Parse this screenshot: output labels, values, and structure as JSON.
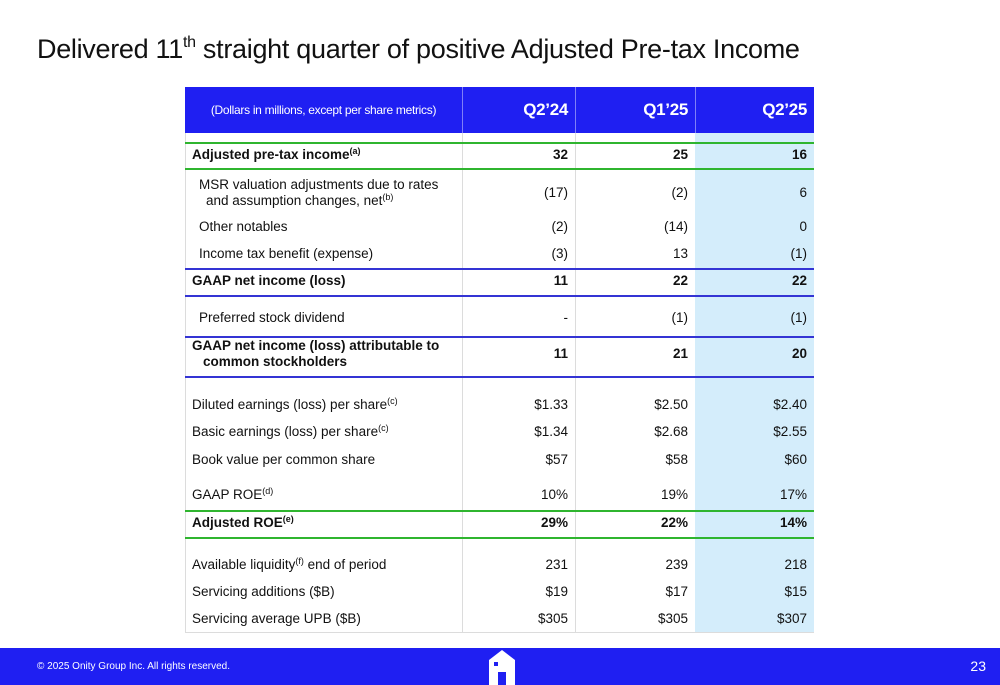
{
  "header": {
    "title": [
      "Delivered 11",
      "th",
      " straight quarter of positive Adjusted Pre-tax Income"
    ]
  },
  "table": {
    "column_headers": [
      "(Dollars in millions, except per share metrics)",
      "Q2’24",
      "Q1’25",
      "Q2’25"
    ],
    "rows": [
      {
        "label": [
          [
            "Adjusted pre-tax income",
            {
              "sup": "(a)"
            }
          ]
        ],
        "cells": [
          "32",
          "25",
          "16"
        ],
        "bold": true
      },
      {
        "label": [
          [
            "MSR valuation adjustments due to rates"
          ],
          [
            "and assumption changes, net",
            {
              "sup": "(b)"
            }
          ]
        ],
        "cells": [
          "(17)",
          "(2)",
          "6"
        ],
        "bold": false
      },
      {
        "label": [
          [
            "Other notables"
          ]
        ],
        "cells": [
          "(2)",
          "(14)",
          "0"
        ],
        "bold": false
      },
      {
        "label": [
          [
            "Income tax benefit (expense)"
          ]
        ],
        "cells": [
          "(3)",
          "13",
          "(1)"
        ],
        "bold": false
      },
      {
        "label": [
          [
            "GAAP net income (loss)"
          ]
        ],
        "cells": [
          "11",
          "22",
          "22"
        ],
        "bold": true
      },
      {
        "label": [
          [
            "Preferred stock dividend"
          ]
        ],
        "cells": [
          "-",
          "(1)",
          "(1)"
        ],
        "bold": false
      },
      {
        "label": [
          [
            "GAAP net income (loss) attributable to"
          ],
          [
            "common stockholders"
          ]
        ],
        "cells": [
          "11",
          "21",
          "20"
        ],
        "bold": true
      },
      {
        "label": [
          [
            "Diluted earnings (loss) per share",
            {
              "sup": "(c)"
            }
          ]
        ],
        "cells": [
          "$1.33",
          "$2.50",
          "$2.40"
        ],
        "bold": false
      },
      {
        "label": [
          [
            "Basic earnings (loss) per share",
            {
              "sup": "(c)"
            }
          ]
        ],
        "cells": [
          "$1.34",
          "$2.68",
          "$2.55"
        ],
        "bold": false
      },
      {
        "label": [
          [
            "Book value per common share"
          ]
        ],
        "cells": [
          "$57",
          "$58",
          "$60"
        ],
        "bold": false
      },
      {
        "label": [
          [
            "GAAP ROE",
            {
              "sup": "(d)"
            }
          ]
        ],
        "cells": [
          "10%",
          "19%",
          "17%"
        ],
        "bold": false
      },
      {
        "label": [
          [
            "Adjusted ROE",
            {
              "sup": "(e)"
            }
          ]
        ],
        "cells": [
          "29%",
          "22%",
          "14%"
        ],
        "bold": true
      },
      {
        "label": [
          [
            "Available liquidity",
            {
              "sup": "(f)"
            },
            " end of period"
          ]
        ],
        "cells": [
          "231",
          "239",
          "218"
        ],
        "bold": false
      },
      {
        "label": [
          [
            "Servicing additions ($B)"
          ]
        ],
        "cells": [
          "$19",
          "$17",
          "$15"
        ],
        "bold": false
      },
      {
        "label": [
          [
            "Servicing average UPB ($B)"
          ]
        ],
        "cells": [
          "$305",
          "$305",
          "$307"
        ],
        "bold": false
      }
    ]
  },
  "footer": {
    "copyright": "© 2025 Onity Group Inc. All rights reserved.",
    "page": "23"
  }
}
